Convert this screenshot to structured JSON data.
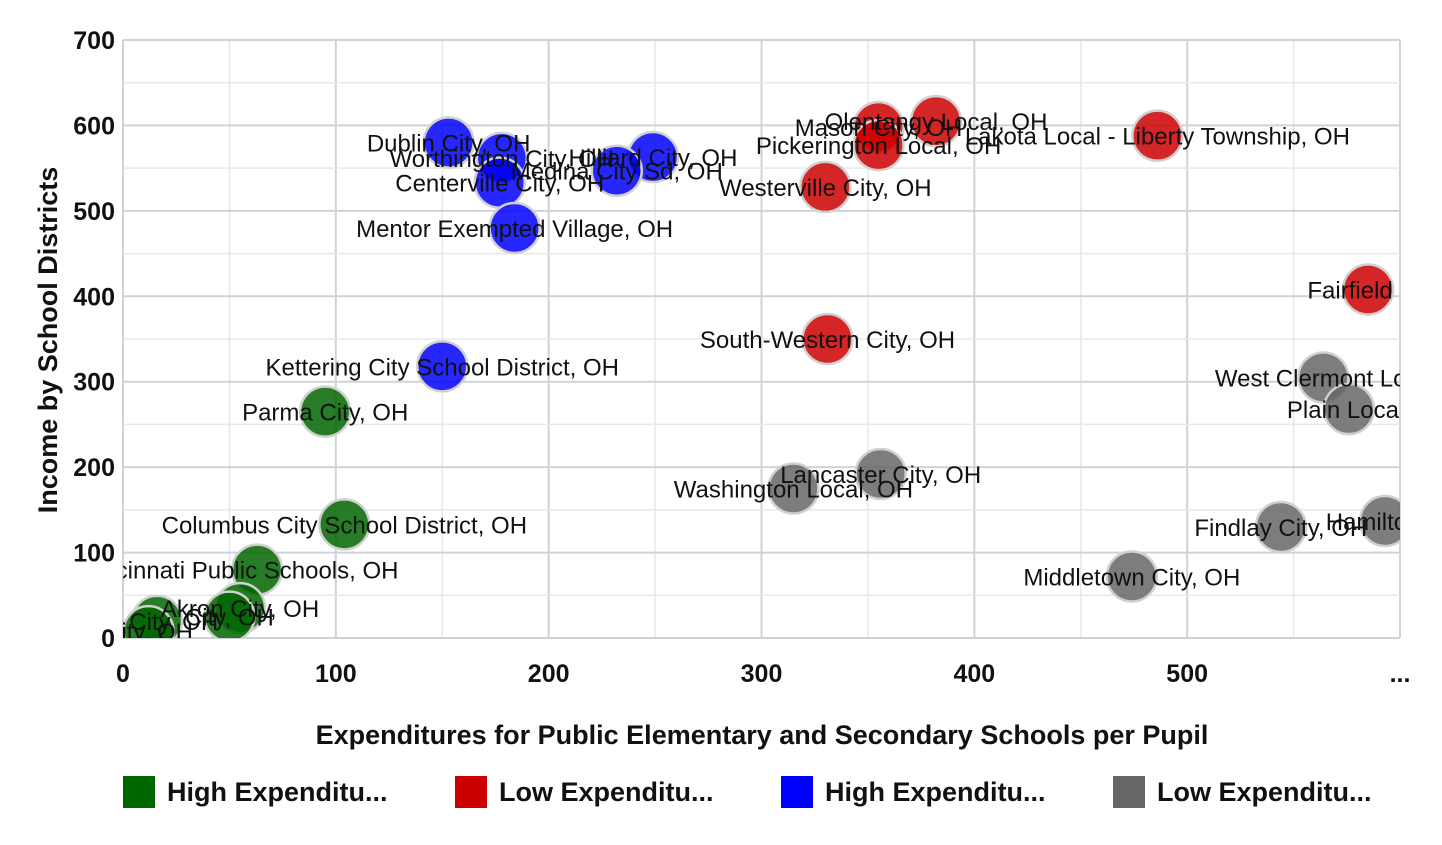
{
  "chart_data": {
    "type": "scatter",
    "title": "",
    "xlabel": "Expenditures for Public Elementary and Secondary Schools per Pupil",
    "ylabel": "Income by School Districts",
    "xlim": [
      0,
      600
    ],
    "ylim": [
      0,
      700
    ],
    "x_ticks": [
      "0",
      "100",
      "200",
      "300",
      "400",
      "500",
      "..."
    ],
    "y_ticks": [
      "0",
      "100",
      "200",
      "300",
      "400",
      "500",
      "600",
      "700"
    ],
    "grid": true,
    "legend_position": "bottom",
    "series": [
      {
        "name": "High Expenditu...",
        "color": "#006600",
        "points": [
          {
            "x": 95,
            "y": 265,
            "label": "Parma City, OH"
          },
          {
            "x": 104,
            "y": 133,
            "label": "Columbus City School District, OH"
          },
          {
            "x": 63,
            "y": 80,
            "label": "cinnati Public Schools, OH"
          },
          {
            "x": 55,
            "y": 35,
            "label": "Akron City, OH"
          },
          {
            "x": 50,
            "y": 25,
            "label": "City, OH"
          },
          {
            "x": 16,
            "y": 20,
            "label": "on City, OH"
          },
          {
            "x": 12,
            "y": 8,
            "label": "City, OH"
          }
        ]
      },
      {
        "name": "Low Expenditu...",
        "color": "#cc0000",
        "points": [
          {
            "x": 382,
            "y": 605,
            "label": "Olentangy Local, OH"
          },
          {
            "x": 355,
            "y": 598,
            "label": "Mason City, OH"
          },
          {
            "x": 486,
            "y": 588,
            "label": "Lakota Local - Liberty Township, OH"
          },
          {
            "x": 355,
            "y": 577,
            "label": "Pickerington Local, OH"
          },
          {
            "x": 330,
            "y": 528,
            "label": "Westerville City, OH"
          },
          {
            "x": 585,
            "y": 408,
            "label": "Fairfield Cit"
          },
          {
            "x": 331,
            "y": 350,
            "label": "South-Western City, OH"
          }
        ]
      },
      {
        "name": "High Expenditu...",
        "color": "#0000ff",
        "points": [
          {
            "x": 153,
            "y": 580,
            "label": "Dublin City, OH"
          },
          {
            "x": 178,
            "y": 562,
            "label": "Worthington City, OH"
          },
          {
            "x": 249,
            "y": 563,
            "label": "Hilliard City, OH"
          },
          {
            "x": 232,
            "y": 547,
            "label": "Medina City Sd, OH"
          },
          {
            "x": 177,
            "y": 533,
            "label": "Centerville City, OH"
          },
          {
            "x": 184,
            "y": 480,
            "label": "Mentor Exempted Village, OH"
          },
          {
            "x": 150,
            "y": 318,
            "label": "Kettering City School District, OH"
          }
        ]
      },
      {
        "name": "Low Expenditu...",
        "color": "#666666",
        "points": [
          {
            "x": 564,
            "y": 305,
            "label": "West Clermont Loca"
          },
          {
            "x": 576,
            "y": 268,
            "label": "Plain Local,"
          },
          {
            "x": 356,
            "y": 192,
            "label": "Lancaster City, OH"
          },
          {
            "x": 315,
            "y": 175,
            "label": "Washington Local, OH"
          },
          {
            "x": 593,
            "y": 137,
            "label": "Hamilton C"
          },
          {
            "x": 544,
            "y": 130,
            "label": "Findlay City, OH"
          },
          {
            "x": 474,
            "y": 72,
            "label": "Middletown City, OH"
          }
        ]
      }
    ]
  }
}
